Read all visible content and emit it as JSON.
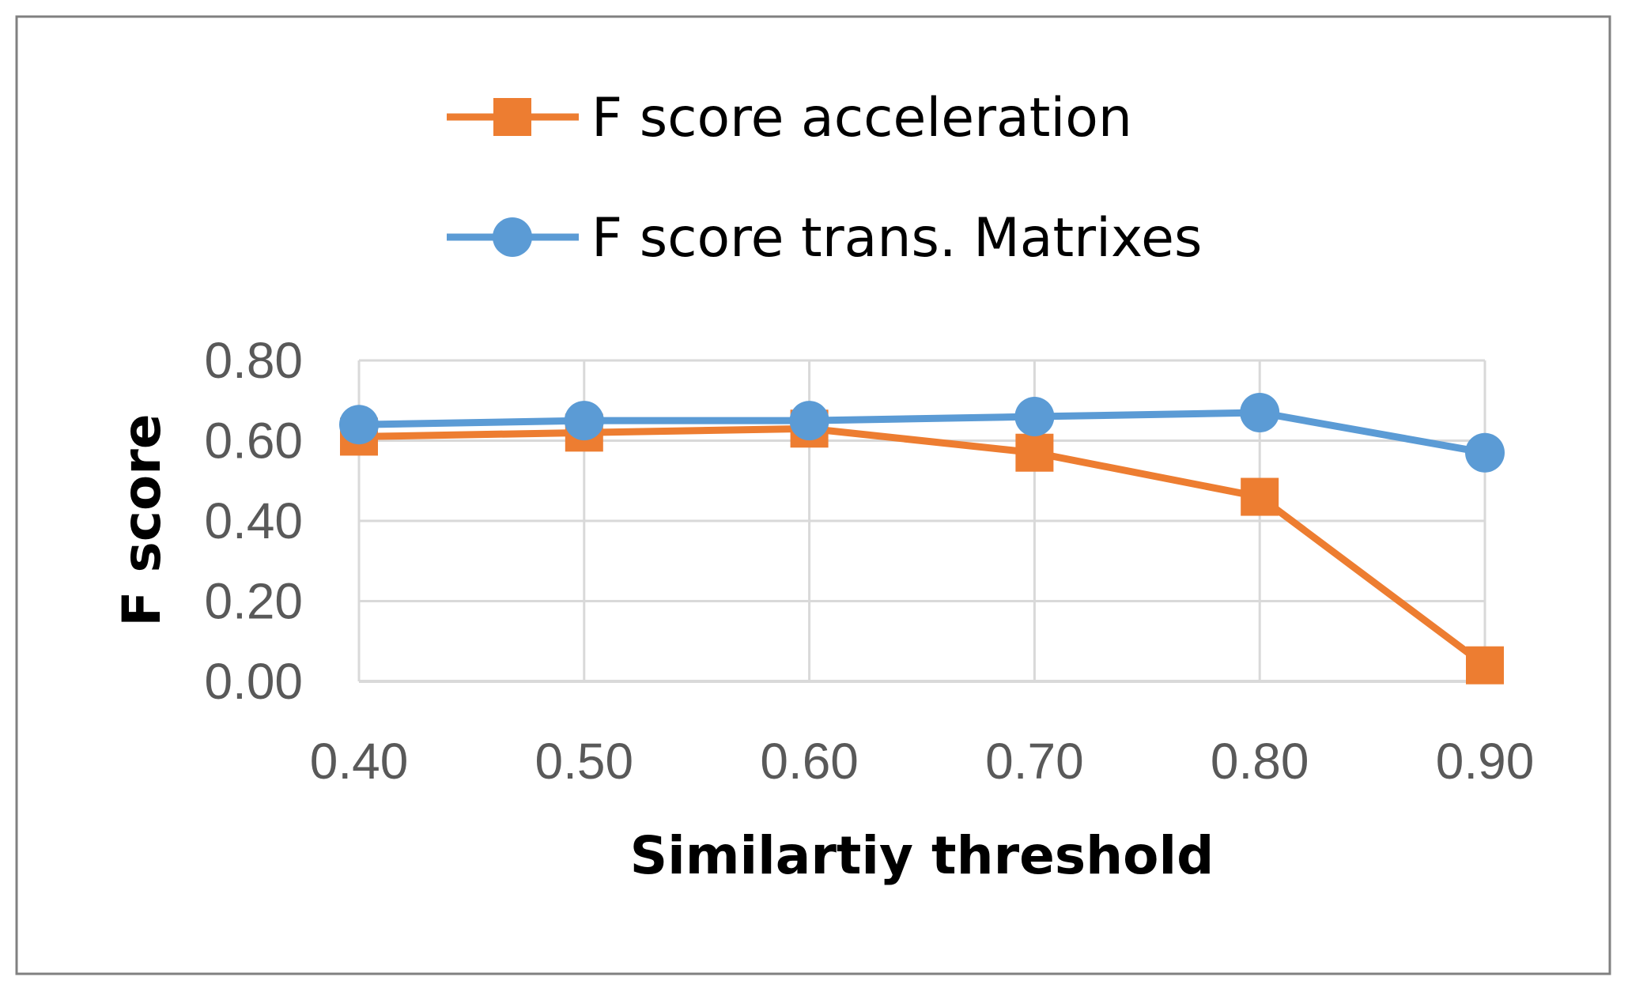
{
  "chart_data": {
    "type": "line",
    "title": "",
    "xlabel": "Similartiy threshold",
    "ylabel": "F score",
    "x": [
      "0.40",
      "0.50",
      "0.60",
      "0.70",
      "0.80",
      "0.90"
    ],
    "ylim": [
      0,
      0.8
    ],
    "yticks": [
      "0.00",
      "0.20",
      "0.40",
      "0.60",
      "0.80"
    ],
    "grid": true,
    "legend_position": "top",
    "series": [
      {
        "name": "F score acceleration",
        "marker": "square",
        "color": "#ED7D31",
        "values": [
          0.61,
          0.62,
          0.63,
          0.57,
          0.46,
          0.04
        ]
      },
      {
        "name": "F score trans. Matrixes",
        "marker": "circle",
        "color": "#5B9BD5",
        "values": [
          0.64,
          0.65,
          0.65,
          0.66,
          0.67,
          0.57
        ]
      }
    ]
  }
}
